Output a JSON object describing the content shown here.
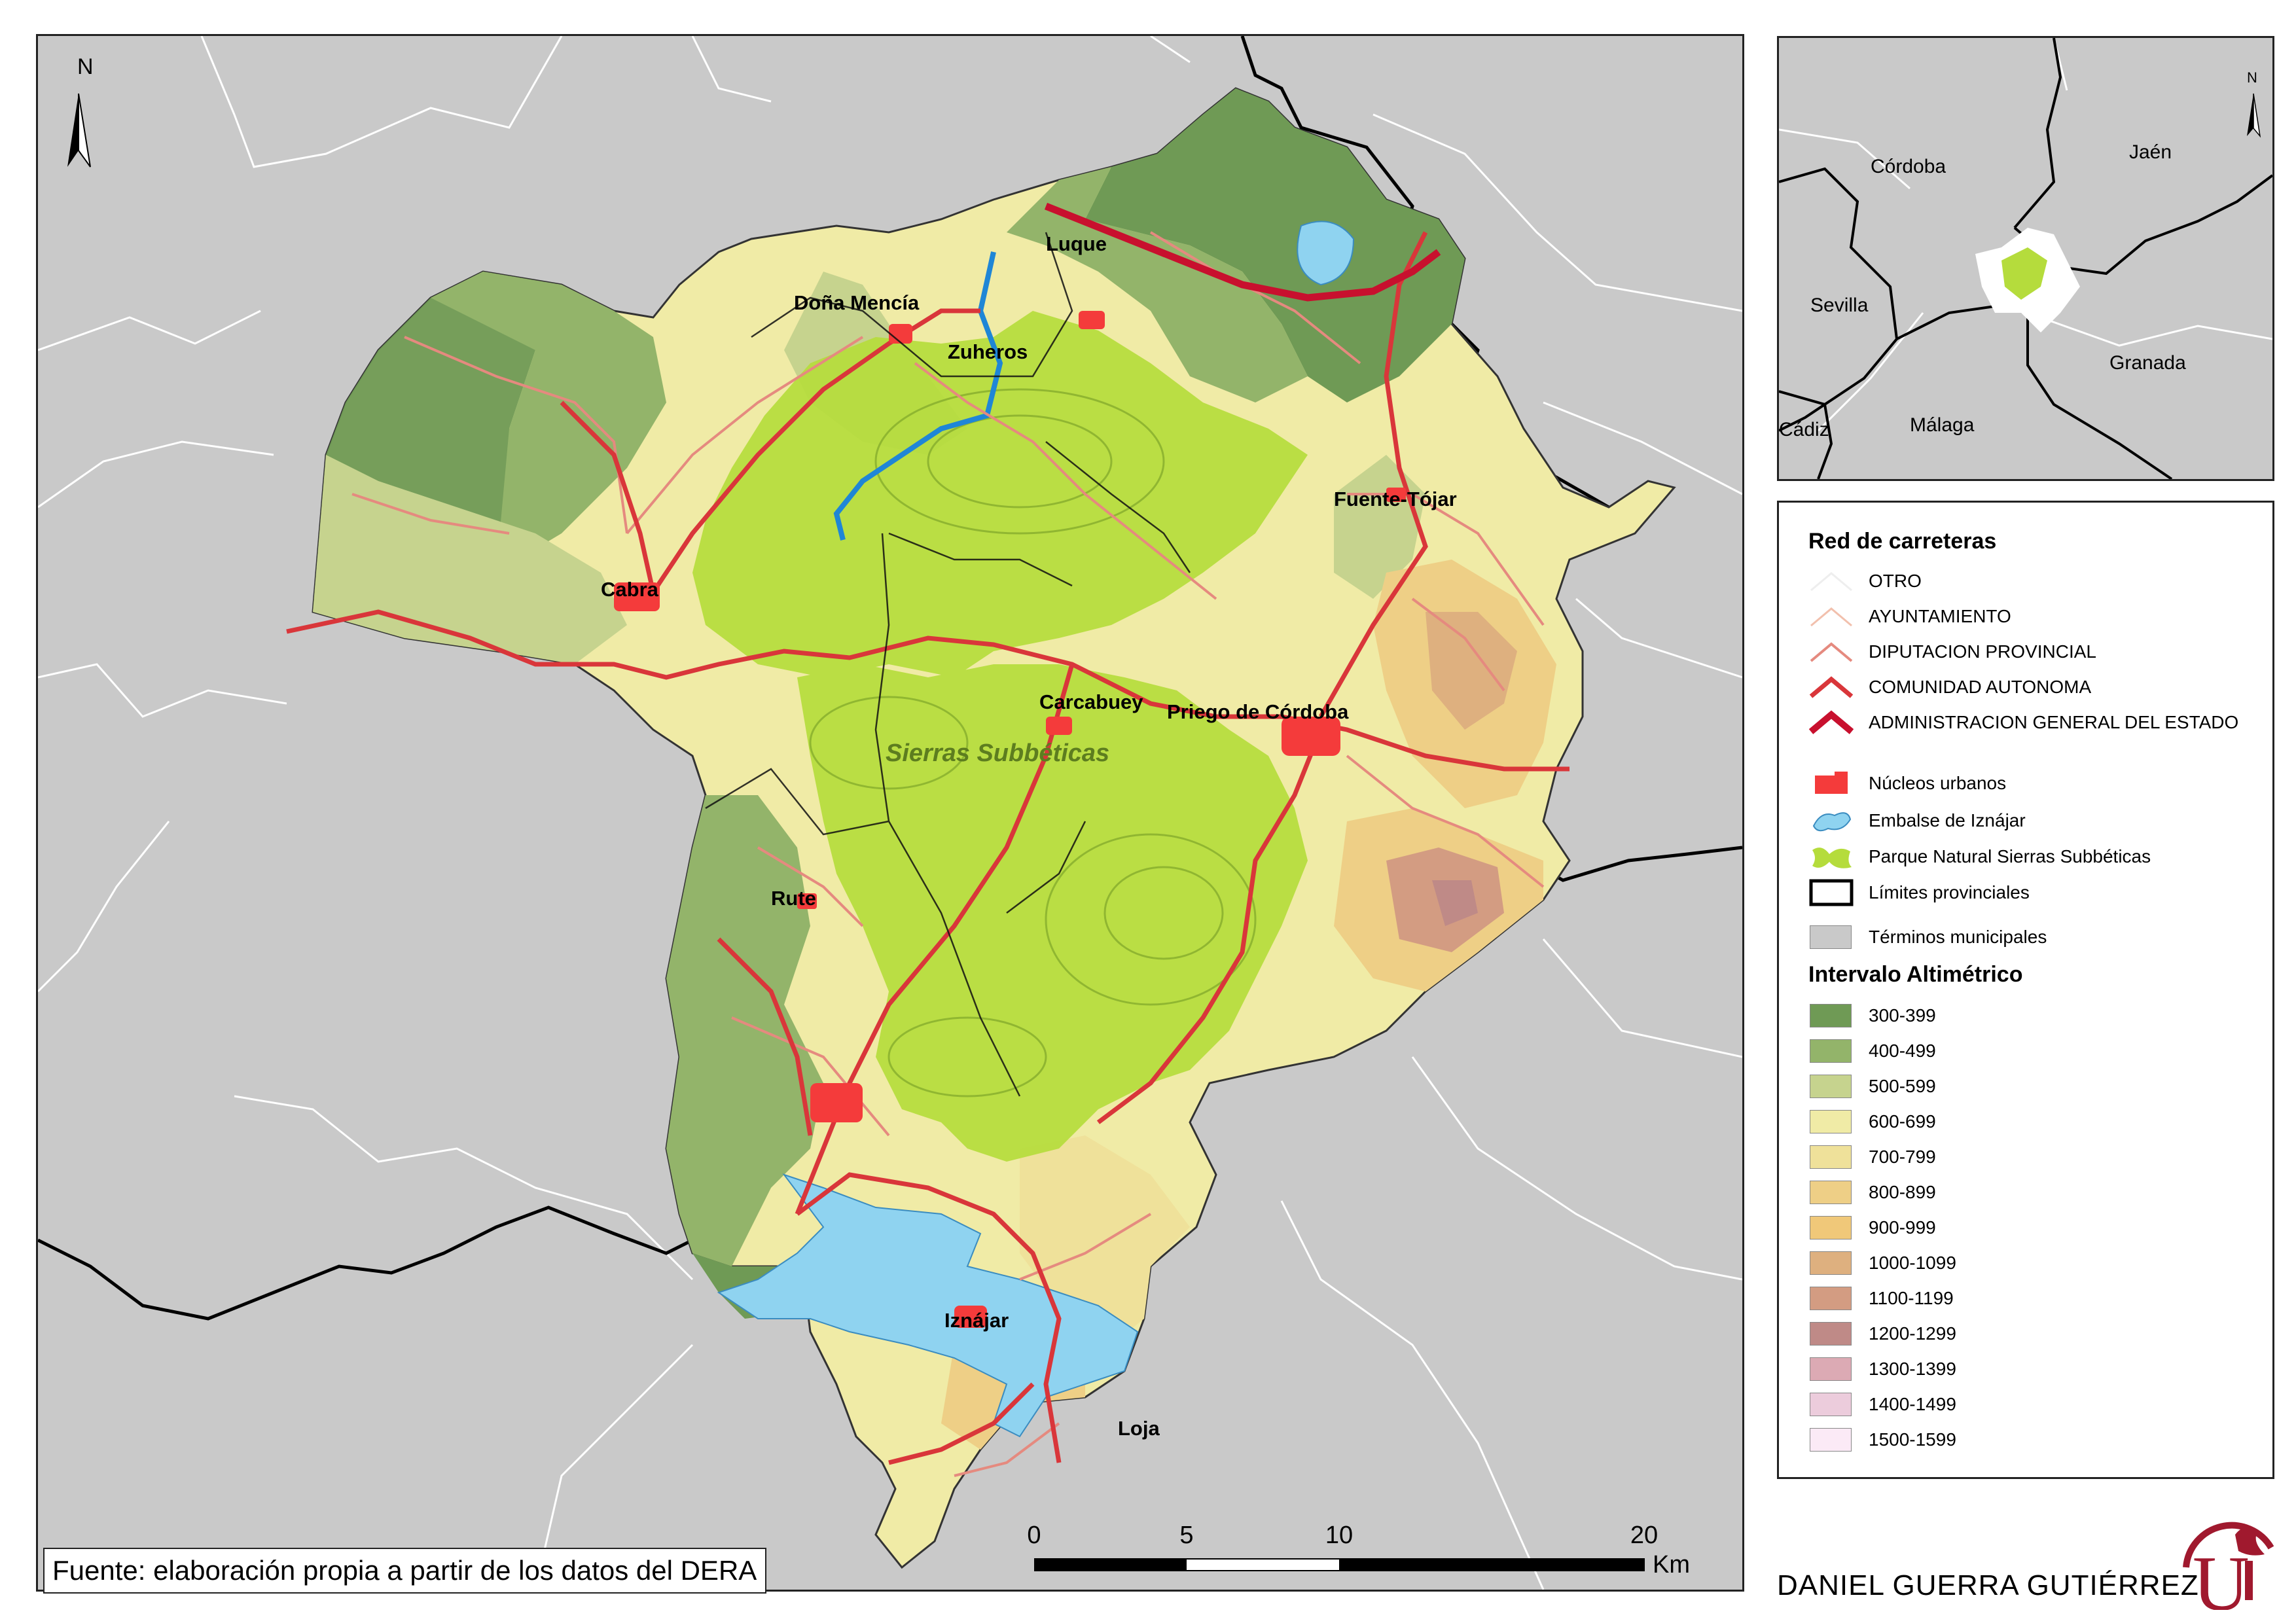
{
  "main_map": {
    "park_label": "Sierras Subbéticas",
    "places": [
      {
        "key": "luque",
        "label": "Luque"
      },
      {
        "key": "dona_mencia",
        "label": "Doña Mencía"
      },
      {
        "key": "zuheros",
        "label": "Zuheros"
      },
      {
        "key": "fuente_tojar",
        "label": "Fuente-Tójar"
      },
      {
        "key": "cabra",
        "label": "Cabra"
      },
      {
        "key": "carcabuey",
        "label": "Carcabuey"
      },
      {
        "key": "priego",
        "label": "Priego de Córdoba"
      },
      {
        "key": "rute",
        "label": "Rute"
      },
      {
        "key": "iznajar",
        "label": "Iznájar"
      },
      {
        "key": "loja",
        "label": "Loja"
      }
    ],
    "north_label": "N"
  },
  "inset_map": {
    "north_label": "N",
    "provinces": [
      "Córdoba",
      "Jaén",
      "Sevilla",
      "Granada",
      "Cádiz",
      "Málaga"
    ]
  },
  "legend": {
    "roads_title": "Red de carreteras",
    "roads": [
      "OTRO",
      "AYUNTAMIENTO",
      "DIPUTACION PROVINCIAL",
      "COMUNIDAD AUTONOMA",
      "ADMINISTRACION GENERAL DEL ESTADO"
    ],
    "features": [
      "Núcleos urbanos",
      "Embalse de Iznájar",
      "Parque Natural Sierras Subbéticas",
      "Límites provinciales",
      "Términos municipales"
    ],
    "altitude_title": "Intervalo Altimétrico",
    "altitude_classes": [
      {
        "label": "300-399",
        "color": "#6f9a55"
      },
      {
        "label": "400-499",
        "color": "#93b46a"
      },
      {
        "label": "500-599",
        "color": "#c6d38e"
      },
      {
        "label": "600-699",
        "color": "#f0eba6"
      },
      {
        "label": "700-799",
        "color": "#efe19a"
      },
      {
        "label": "800-899",
        "color": "#eecf86"
      },
      {
        "label": "900-999",
        "color": "#f0c879"
      },
      {
        "label": "1000-1099",
        "color": "#deb07f"
      },
      {
        "label": "1100-1199",
        "color": "#d39c82"
      },
      {
        "label": "1200-1299",
        "color": "#bf8a87"
      },
      {
        "label": "1300-1399",
        "color": "#dcaab4"
      },
      {
        "label": "1400-1499",
        "color": "#ecccdc"
      },
      {
        "label": "1500-1599",
        "color": "#fbeaf6"
      }
    ]
  },
  "colors": {
    "background_municipal": "#c9c9c9",
    "park": "#b5dc3c",
    "urban": "#f43b3b",
    "reservoir": "#8fd3f0",
    "road_state": "#c8102e",
    "road_regional": "#d9363a",
    "road_provincial": "#e58a7f",
    "river": "#1f86d6"
  },
  "scale": {
    "ticks": [
      "0",
      "5",
      "10",
      "20"
    ],
    "unit": "Km"
  },
  "source_text": "Fuente: elaboración propia a partir de los datos del DERA",
  "author": "DANIEL GUERRA GUTIÉRREZ"
}
